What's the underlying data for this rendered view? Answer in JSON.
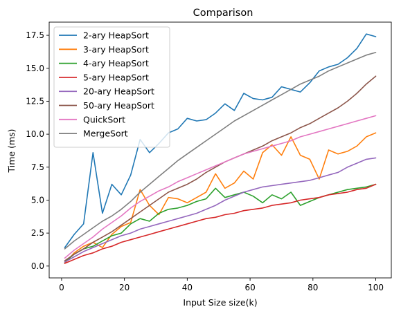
{
  "chart_data": {
    "type": "line",
    "title": "Comparison",
    "xlabel": "Input Size size(k)",
    "ylabel": "Time (ms)",
    "xlim": [
      -3.95,
      104.95
    ],
    "ylim": [
      -0.9,
      18.5
    ],
    "x_ticks": [
      0,
      20,
      40,
      60,
      80,
      100
    ],
    "y_ticks": [
      0.0,
      2.5,
      5.0,
      7.5,
      10.0,
      12.5,
      15.0,
      17.5
    ],
    "x_tick_labels": [
      "0",
      "20",
      "40",
      "60",
      "80",
      "100"
    ],
    "y_tick_labels": [
      "0.0",
      "2.5",
      "5.0",
      "7.5",
      "10.0",
      "12.5",
      "15.0",
      "17.5"
    ],
    "grid": false,
    "legend_position": "upper-left",
    "x": [
      1,
      4,
      7,
      10,
      13,
      16,
      19,
      22,
      25,
      28,
      31,
      34,
      37,
      40,
      43,
      46,
      49,
      52,
      55,
      58,
      61,
      64,
      67,
      70,
      73,
      76,
      79,
      82,
      85,
      88,
      91,
      94,
      97,
      100
    ],
    "series": [
      {
        "name": "2-ary HeapSort",
        "color": "#1f77b4",
        "values": [
          1.4,
          2.4,
          3.2,
          8.6,
          4.0,
          6.2,
          5.4,
          6.9,
          9.6,
          8.6,
          9.3,
          10.1,
          10.4,
          11.2,
          11.0,
          11.1,
          11.6,
          12.3,
          11.8,
          13.1,
          12.7,
          12.6,
          12.8,
          13.6,
          13.4,
          13.2,
          13.9,
          14.8,
          15.1,
          15.3,
          15.8,
          16.5,
          17.6,
          17.4
        ]
      },
      {
        "name": "3-ary HeapSort",
        "color": "#ff7f0e",
        "values": [
          0.2,
          1.0,
          1.5,
          1.8,
          1.4,
          2.4,
          3.0,
          3.3,
          5.8,
          4.6,
          3.9,
          5.2,
          5.1,
          4.8,
          5.2,
          5.6,
          7.0,
          5.9,
          6.3,
          7.2,
          6.6,
          8.6,
          9.2,
          8.4,
          9.8,
          8.4,
          8.1,
          6.6,
          8.8,
          8.5,
          8.7,
          9.1,
          9.8,
          10.1
        ]
      },
      {
        "name": "4-ary HeapSort",
        "color": "#2ca02c",
        "values": [
          0.3,
          0.9,
          1.3,
          1.5,
          1.9,
          2.3,
          2.5,
          3.2,
          3.6,
          3.4,
          4.0,
          4.3,
          4.4,
          4.6,
          4.9,
          5.1,
          5.9,
          5.2,
          5.4,
          5.6,
          5.3,
          4.8,
          5.4,
          5.1,
          5.6,
          4.6,
          4.9,
          5.2,
          5.4,
          5.6,
          5.8,
          5.9,
          6.0,
          6.2
        ]
      },
      {
        "name": "5-ary HeapSort",
        "color": "#d62728",
        "values": [
          0.2,
          0.5,
          0.8,
          1.0,
          1.3,
          1.5,
          1.8,
          2.0,
          2.2,
          2.4,
          2.6,
          2.8,
          3.0,
          3.2,
          3.4,
          3.6,
          3.7,
          3.9,
          4.0,
          4.2,
          4.3,
          4.4,
          4.6,
          4.7,
          4.8,
          5.0,
          5.1,
          5.2,
          5.4,
          5.5,
          5.6,
          5.8,
          5.9,
          6.2
        ]
      },
      {
        "name": "20-ary HeapSort",
        "color": "#9467bd",
        "values": [
          0.3,
          0.7,
          1.1,
          1.4,
          1.7,
          2.0,
          2.3,
          2.5,
          2.8,
          3.0,
          3.2,
          3.4,
          3.6,
          3.8,
          4.0,
          4.3,
          4.6,
          5.0,
          5.3,
          5.6,
          5.8,
          6.0,
          6.1,
          6.2,
          6.3,
          6.4,
          6.5,
          6.7,
          6.9,
          7.1,
          7.5,
          7.8,
          8.1,
          8.2
        ]
      },
      {
        "name": "50-ary HeapSort",
        "color": "#8c564b",
        "values": [
          0.4,
          0.9,
          1.3,
          1.8,
          2.2,
          2.6,
          3.1,
          3.6,
          4.1,
          4.6,
          5.1,
          5.6,
          5.9,
          6.2,
          6.6,
          7.1,
          7.5,
          7.9,
          8.2,
          8.5,
          8.8,
          9.1,
          9.5,
          9.8,
          10.1,
          10.5,
          10.8,
          11.2,
          11.6,
          12.0,
          12.5,
          13.1,
          13.8,
          14.4
        ]
      },
      {
        "name": "QuickSort",
        "color": "#e377c2",
        "values": [
          0.6,
          1.2,
          1.7,
          2.2,
          2.8,
          3.3,
          3.8,
          4.4,
          4.9,
          5.3,
          5.7,
          6.0,
          6.4,
          6.7,
          7.0,
          7.3,
          7.6,
          7.9,
          8.2,
          8.5,
          8.7,
          8.9,
          9.1,
          9.3,
          9.5,
          9.8,
          10.0,
          10.2,
          10.4,
          10.6,
          10.8,
          11.0,
          11.2,
          11.4
        ]
      },
      {
        "name": "MergeSort",
        "color": "#7f7f7f",
        "values": [
          1.3,
          1.9,
          2.4,
          2.9,
          3.4,
          3.8,
          4.3,
          4.9,
          5.6,
          6.2,
          6.8,
          7.4,
          8.0,
          8.5,
          9.0,
          9.5,
          10.0,
          10.5,
          11.0,
          11.4,
          11.8,
          12.2,
          12.6,
          13.0,
          13.4,
          13.8,
          14.1,
          14.4,
          14.8,
          15.1,
          15.4,
          15.7,
          16.0,
          16.2
        ]
      }
    ]
  }
}
